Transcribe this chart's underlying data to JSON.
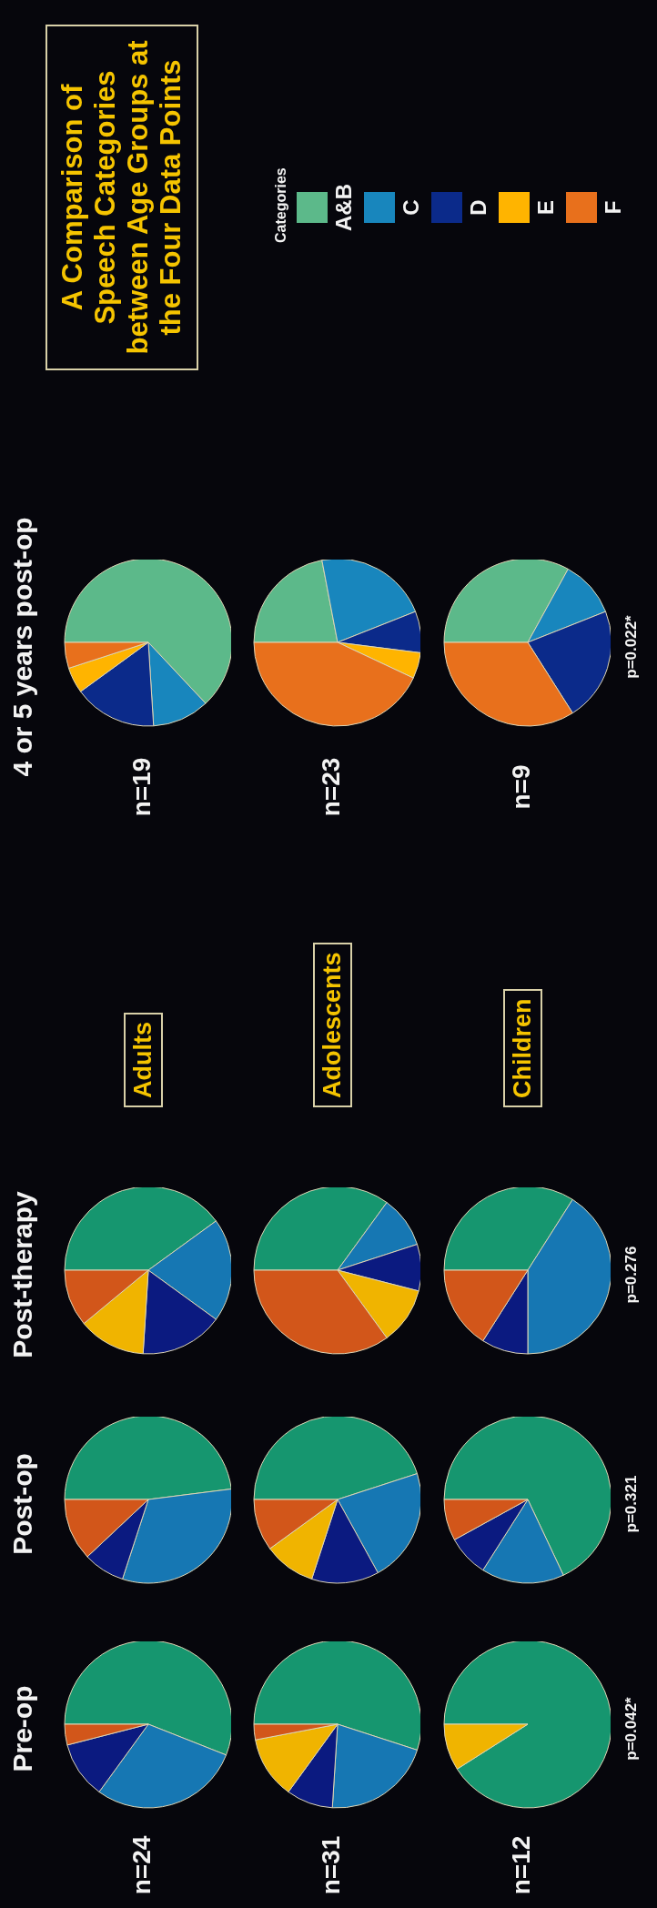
{
  "chart_data": [
    {
      "type": "pie",
      "title": "Pre-op",
      "annotations": [
        "n=24"
      ],
      "categories": [
        null,
        null,
        null,
        null,
        null
      ],
      "values": [
        56,
        29,
        11,
        0,
        4
      ],
      "colors": [
        "#16966f",
        "#1677b3",
        "#0b1a80",
        "#f0b400",
        "#d2561a"
      ]
    },
    {
      "type": "pie",
      "title": "Post-op",
      "categories": [
        null,
        null,
        null,
        null,
        null
      ],
      "values": [
        48,
        32,
        8,
        0,
        12
      ],
      "colors": [
        "#16966f",
        "#1677b3",
        "#0b1a80",
        "#f0b400",
        "#d2561a"
      ]
    },
    {
      "type": "pie",
      "title": "Post-therapy",
      "categories": [
        null,
        null,
        null,
        null,
        null
      ],
      "values": [
        40,
        20,
        16,
        13,
        11
      ],
      "colors": [
        "#16966f",
        "#1677b3",
        "#0b1a80",
        "#f0b400",
        "#d2561a"
      ]
    },
    {
      "type": "pie",
      "title": "4 or 5 years post-op",
      "annotations": [
        "n=19"
      ],
      "legend": "right",
      "legend_title": "Categories",
      "categories": [
        "A&B",
        "C",
        "D",
        "E",
        "F"
      ],
      "values": [
        63,
        11,
        16,
        5,
        5
      ],
      "colors": [
        "#5cb98a",
        "#1886bd",
        "#0b2a8a",
        "#ffb400",
        "#e8701c"
      ]
    },
    {
      "type": "pie",
      "annotations": [
        "n=31"
      ],
      "categories": [
        null,
        null,
        null,
        null,
        null
      ],
      "values": [
        55,
        21,
        9,
        12,
        3
      ],
      "colors": [
        "#16966f",
        "#1677b3",
        "#0b1a80",
        "#f0b400",
        "#d2561a"
      ]
    },
    {
      "type": "pie",
      "categories": [
        null,
        null,
        null,
        null,
        null
      ],
      "values": [
        45,
        22,
        13,
        10,
        10
      ],
      "colors": [
        "#16966f",
        "#1677b3",
        "#0b1a80",
        "#f0b400",
        "#d2561a"
      ]
    },
    {
      "type": "pie",
      "categories": [
        null,
        null,
        null,
        null,
        null
      ],
      "values": [
        35,
        10,
        9,
        11,
        35
      ],
      "colors": [
        "#16966f",
        "#1677b3",
        "#0b1a80",
        "#f0b400",
        "#d2561a"
      ]
    },
    {
      "type": "pie",
      "annotations": [
        "n=23"
      ],
      "categories": [
        null,
        null,
        null,
        null,
        null
      ],
      "values": [
        22,
        22,
        8,
        5,
        43
      ],
      "colors": [
        "#5cb98a",
        "#1886bd",
        "#0b2a8a",
        "#ffb400",
        "#e8701c"
      ]
    },
    {
      "type": "pie",
      "annotations": [
        "n=12",
        "p=0.042*"
      ],
      "categories": [
        null,
        null,
        null,
        null,
        null
      ],
      "values": [
        91,
        0,
        0,
        9,
        0
      ],
      "colors": [
        "#16966f",
        "#1677b3",
        "#0b1a80",
        "#f0b400",
        "#d2561a"
      ]
    },
    {
      "type": "pie",
      "annotations": [
        null,
        "p=0.321"
      ],
      "categories": [
        null,
        null,
        null,
        null,
        null
      ],
      "values": [
        68,
        16,
        8,
        0,
        8
      ],
      "colors": [
        "#16966f",
        "#1677b3",
        "#0b1a80",
        "#f0b400",
        "#d2561a"
      ]
    },
    {
      "type": "pie",
      "annotations": [
        null,
        "p=0.276"
      ],
      "categories": [
        null,
        null,
        null,
        null,
        null
      ],
      "values": [
        34,
        41,
        9,
        0,
        16
      ],
      "colors": [
        "#16966f",
        "#1677b3",
        "#0b1a80",
        "#f0b400",
        "#d2561a"
      ]
    },
    {
      "type": "pie",
      "annotations": [
        "n=9",
        "p=0.022*"
      ],
      "categories": [
        null,
        null,
        null,
        null,
        null
      ],
      "values": [
        33,
        11,
        22,
        0,
        34
      ],
      "colors": [
        "#5cb98a",
        "#1886bd",
        "#0b2a8a",
        "#ffb400",
        "#e8701c"
      ]
    },
    {
      "type": "other",
      "title": "A Comparison of Speech Categories between Age Groups at the Four Data Points",
      "annotations": [
        "Adults",
        "Adolescents",
        "Children"
      ]
    }
  ]
}
